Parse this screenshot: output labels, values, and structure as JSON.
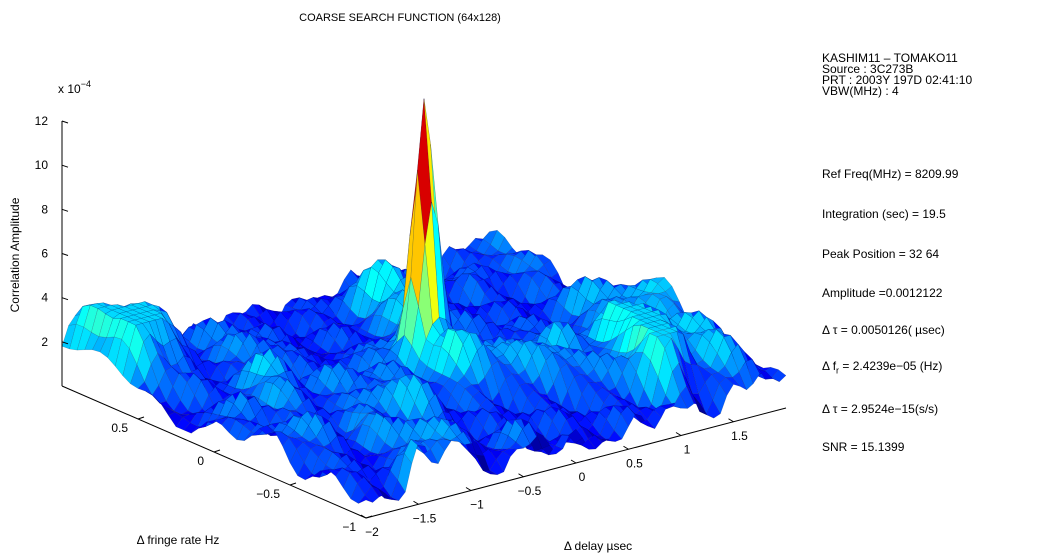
{
  "chart_data": {
    "type": "surface3d",
    "title": "COARSE SEARCH FUNCTION (64x128)",
    "grid_size": [
      64,
      128
    ],
    "xlabel": "Δ delay µsec",
    "ylabel": "Δ fringe rate Hz",
    "zlabel": "Correlation Amplitude",
    "z_exponent_label": "x 10",
    "z_exponent_sup": "−4",
    "x_range": [
      -2,
      2
    ],
    "y_range": [
      -1,
      1
    ],
    "z_range": [
      0,
      12
    ],
    "x_ticks": [
      {
        "v": -2,
        "label": "−2"
      },
      {
        "v": -1.5,
        "label": "−1.5"
      },
      {
        "v": -1,
        "label": "−1"
      },
      {
        "v": -0.5,
        "label": "−0.5"
      },
      {
        "v": 0,
        "label": "0"
      },
      {
        "v": 0.5,
        "label": "0.5"
      },
      {
        "v": 1,
        "label": "1"
      },
      {
        "v": 1.5,
        "label": "1.5"
      }
    ],
    "y_ticks": [
      {
        "v": -1,
        "label": "−1"
      },
      {
        "v": -0.5,
        "label": "−0.5"
      },
      {
        "v": 0,
        "label": "0"
      },
      {
        "v": 0.5,
        "label": "0.5"
      }
    ],
    "z_ticks": [
      {
        "v": 2,
        "label": "2"
      },
      {
        "v": 4,
        "label": "4"
      },
      {
        "v": 6,
        "label": "6"
      },
      {
        "v": 8,
        "label": "8"
      },
      {
        "v": 10,
        "label": "10"
      },
      {
        "v": 12,
        "label": "12"
      }
    ],
    "peak": {
      "x": 0,
      "y": 0,
      "z": 12.1
    },
    "noise_floor": 2.5,
    "colormap": "jet"
  },
  "info": {
    "baseline": "KASHIM11 – TOMAKO11",
    "source": "Source : 3C273B",
    "prt": "PRT : 2003Y 197D 02:41:10",
    "vbw": "VBW(MHz) : 4",
    "ref_freq": "Ref Freq(MHz) = 8209.99",
    "integration": "Integration (sec) = 19.5",
    "peak_position": "Peak Position = 32  64",
    "amplitude": "Amplitude =0.0012122",
    "delta_tau_pre": "Δ τ = 0.0050126( µsec)",
    "delta_fr_pre": "Δ f",
    "delta_fr_sub": "r",
    "delta_fr_post": " = 2.4239e−05 (Hz)",
    "delta_tau_rate": "Δ τ = 2.9524e−15(s/s)",
    "snr": "SNR  = 15.1399"
  }
}
